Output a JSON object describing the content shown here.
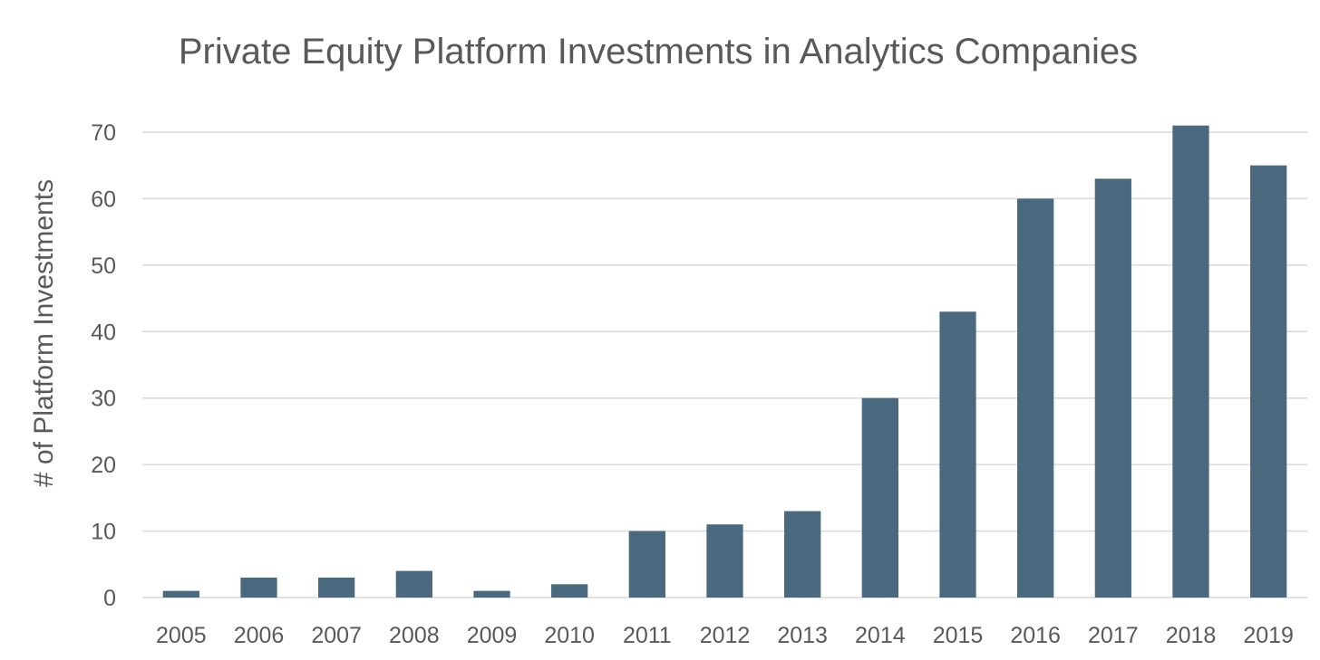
{
  "chart_data": {
    "type": "bar",
    "title": "Private Equity Platform Investments in Analytics Companies",
    "xlabel": "",
    "ylabel": "# of Platform Investments",
    "categories": [
      "2005",
      "2006",
      "2007",
      "2008",
      "2009",
      "2010",
      "2011",
      "2012",
      "2013",
      "2014",
      "2015",
      "2016",
      "2017",
      "2018",
      "2019"
    ],
    "values": [
      1,
      3,
      3,
      4,
      1,
      2,
      10,
      11,
      13,
      30,
      43,
      60,
      63,
      71,
      65
    ],
    "ylim": [
      0,
      70
    ],
    "yticks": [
      0,
      10,
      20,
      30,
      40,
      50,
      60,
      70
    ],
    "grid": true,
    "legend": "none",
    "bar_color": "#4a687e"
  }
}
